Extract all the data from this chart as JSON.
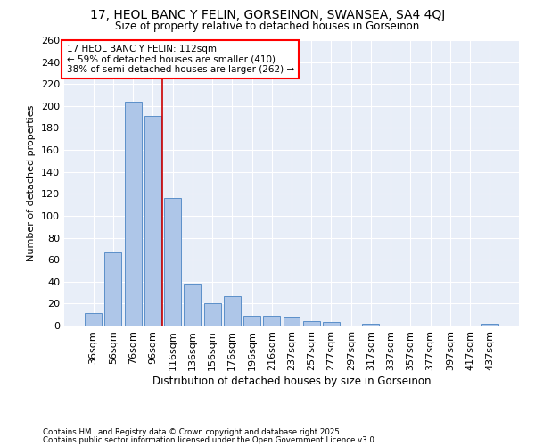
{
  "title1": "17, HEOL BANC Y FELIN, GORSEINON, SWANSEA, SA4 4QJ",
  "title2": "Size of property relative to detached houses in Gorseinon",
  "xlabel": "Distribution of detached houses by size in Gorseinon",
  "ylabel": "Number of detached properties",
  "categories": [
    "36sqm",
    "56sqm",
    "76sqm",
    "96sqm",
    "116sqm",
    "136sqm",
    "156sqm",
    "176sqm",
    "196sqm",
    "216sqm",
    "237sqm",
    "257sqm",
    "277sqm",
    "297sqm",
    "317sqm",
    "337sqm",
    "357sqm",
    "377sqm",
    "397sqm",
    "417sqm",
    "437sqm"
  ],
  "values": [
    11,
    67,
    204,
    191,
    116,
    38,
    20,
    27,
    9,
    9,
    8,
    4,
    3,
    0,
    2,
    0,
    0,
    0,
    0,
    0,
    2
  ],
  "bar_color": "#aec6e8",
  "bar_edge_color": "#5b8fc9",
  "background_color": "#ffffff",
  "plot_bg_color": "#e8eef8",
  "grid_color": "#ffffff",
  "vline_color": "#cc0000",
  "vline_x_index": 4,
  "annotation_text": "17 HEOL BANC Y FELIN: 112sqm\n← 59% of detached houses are smaller (410)\n38% of semi-detached houses are larger (262) →",
  "annotation_box_color": "white",
  "annotation_box_edge": "red",
  "footnote1": "Contains HM Land Registry data © Crown copyright and database right 2025.",
  "footnote2": "Contains public sector information licensed under the Open Government Licence v3.0.",
  "ylim": [
    0,
    260
  ],
  "yticks": [
    0,
    20,
    40,
    60,
    80,
    100,
    120,
    140,
    160,
    180,
    200,
    220,
    240,
    260
  ]
}
